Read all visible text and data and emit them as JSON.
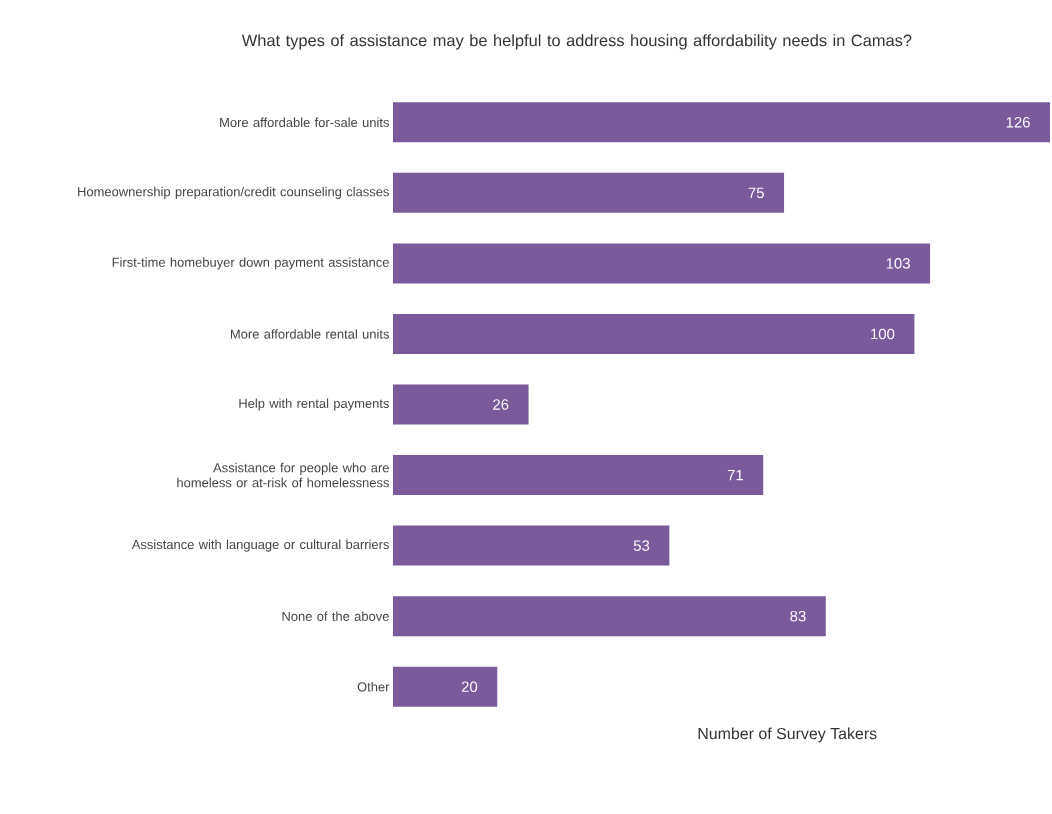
{
  "chart_data": {
    "type": "bar",
    "orientation": "horizontal",
    "title": "What types of assistance may be helpful to address housing affordability needs in Camas?",
    "xlabel": "Number of Survey Takers",
    "categories": [
      "More affordable for-sale units",
      "Homeownership preparation/credit counseling classes",
      "First-time homebuyer down payment assistance",
      "More affordable rental units",
      "Help with rental payments",
      "Assistance for people who are homeless or at-risk of homelessness",
      "Assistance with language or cultural barriers",
      "None of the above",
      "Other"
    ],
    "values": [
      126,
      75,
      103,
      100,
      26,
      71,
      53,
      83,
      20
    ],
    "color": "#7a5a9a",
    "data_labels": true
  }
}
